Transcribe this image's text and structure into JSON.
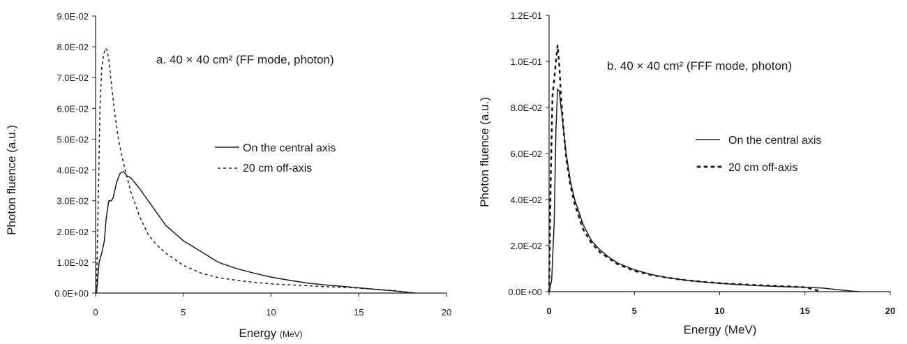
{
  "chart_data": [
    {
      "type": "line",
      "title": "a. 40 × 40 cm² (FF mode, photon)",
      "xlabel": "Energy",
      "xlabel_unit": "(MeV)",
      "ylabel": "Photon fluence (a.u.)",
      "xlim": [
        0,
        20
      ],
      "ylim": [
        0,
        0.09
      ],
      "x_ticks": [
        "0",
        "5",
        "10",
        "15",
        "20"
      ],
      "y_ticks": [
        "0.0E+00",
        "1.0E-02",
        "2.0E-02",
        "3.0E-02",
        "4.0E-02",
        "5.0E-02",
        "6.0E-02",
        "7.0E-02",
        "8.0E-02",
        "9.0E-02"
      ],
      "grid": false,
      "legend_position": "middle-right",
      "series": [
        {
          "name": "On the central axis",
          "style": "solid",
          "color": "#1a1a1a",
          "x": [
            0.05,
            0.2,
            0.35,
            0.5,
            0.6,
            0.75,
            0.9,
            1.0,
            1.2,
            1.4,
            1.6,
            1.8,
            2.0,
            2.5,
            3.0,
            3.5,
            4.0,
            5.0,
            6.0,
            7.0,
            8.0,
            9.0,
            10.0,
            11.0,
            12.0,
            13.0,
            14.0,
            15.0,
            16.0,
            17.0,
            17.8,
            18.2
          ],
          "y": [
            0.0,
            0.01,
            0.013,
            0.017,
            0.024,
            0.03,
            0.03,
            0.031,
            0.036,
            0.039,
            0.0395,
            0.038,
            0.0375,
            0.034,
            0.03,
            0.026,
            0.022,
            0.017,
            0.0135,
            0.01,
            0.008,
            0.0065,
            0.0052,
            0.0042,
            0.0033,
            0.0027,
            0.0022,
            0.0017,
            0.0012,
            0.0007,
            0.0002,
            0.0
          ]
        },
        {
          "name": "20 cm off-axis",
          "style": "dashed",
          "color": "#1a1a1a",
          "x": [
            0.05,
            0.15,
            0.25,
            0.35,
            0.45,
            0.55,
            0.65,
            0.75,
            0.9,
            1.1,
            1.3,
            1.6,
            2.0,
            2.5,
            3.0,
            3.5,
            4.0,
            5.0,
            6.0,
            7.0,
            8.0,
            9.0,
            10.0,
            11.0,
            12.0,
            13.0,
            14.0,
            15.0,
            16.0,
            17.0,
            17.8,
            18.2
          ],
          "y": [
            0.0,
            0.03,
            0.06,
            0.073,
            0.077,
            0.0795,
            0.079,
            0.076,
            0.068,
            0.058,
            0.05,
            0.042,
            0.033,
            0.025,
            0.019,
            0.0155,
            0.013,
            0.009,
            0.0065,
            0.005,
            0.0042,
            0.0035,
            0.003,
            0.0027,
            0.0024,
            0.0021,
            0.0019,
            0.0016,
            0.0012,
            0.0008,
            0.0003,
            0.0
          ]
        }
      ]
    },
    {
      "type": "line",
      "title": "b. 40 × 40 cm² (FFF mode, photon)",
      "xlabel": "Energy (MeV)",
      "xlabel_unit": "",
      "ylabel": "Photon fluence (a.u.)",
      "xlim": [
        0,
        20
      ],
      "ylim": [
        0,
        0.12
      ],
      "x_ticks": [
        "0",
        "5",
        "10",
        "15",
        "20"
      ],
      "y_ticks": [
        "0.0E+00",
        "2.0E-02",
        "4.0E-02",
        "6.0E-02",
        "8.0E-02",
        "1.0E-01",
        "1.2E-01"
      ],
      "grid": false,
      "legend_position": "middle-right",
      "series": [
        {
          "name": "On the central axis",
          "style": "solid",
          "color": "#1a1a1a",
          "x": [
            0.0,
            0.15,
            0.3,
            0.4,
            0.5,
            0.6,
            0.7,
            0.85,
            1.0,
            1.25,
            1.5,
            2.0,
            2.5,
            3.0,
            3.5,
            4.0,
            5.0,
            6.0,
            7.0,
            8.0,
            9.0,
            10.0,
            11.0,
            12.0,
            13.0,
            14.0,
            15.0,
            16.0,
            17.0,
            17.8,
            18.2
          ],
          "y": [
            0.0,
            0.005,
            0.03,
            0.07,
            0.088,
            0.087,
            0.08,
            0.07,
            0.06,
            0.048,
            0.04,
            0.029,
            0.022,
            0.018,
            0.015,
            0.0125,
            0.0095,
            0.0075,
            0.006,
            0.005,
            0.0042,
            0.0036,
            0.0031,
            0.0027,
            0.0024,
            0.0021,
            0.0019,
            0.0016,
            0.0008,
            0.0002,
            0.0
          ]
        },
        {
          "name": "20 cm off-axis",
          "style": "dotted",
          "color": "#1a1a1a",
          "x": [
            0.0,
            0.1,
            0.2,
            0.3,
            0.4,
            0.5,
            0.6,
            0.7,
            0.85,
            1.0,
            1.25,
            1.5,
            2.0,
            2.5,
            3.0,
            3.5,
            4.0,
            5.0,
            6.0,
            7.0,
            8.0,
            9.0,
            10.0,
            11.0,
            12.0,
            13.0,
            14.0,
            15.0,
            15.5,
            16.0
          ],
          "y": [
            0.0,
            0.05,
            0.085,
            0.092,
            0.1,
            0.107,
            0.098,
            0.085,
            0.07,
            0.058,
            0.046,
            0.038,
            0.027,
            0.021,
            0.017,
            0.0145,
            0.012,
            0.009,
            0.0072,
            0.006,
            0.005,
            0.0043,
            0.0037,
            0.0033,
            0.0029,
            0.0026,
            0.0023,
            0.0019,
            0.001,
            0.0
          ]
        }
      ]
    }
  ]
}
